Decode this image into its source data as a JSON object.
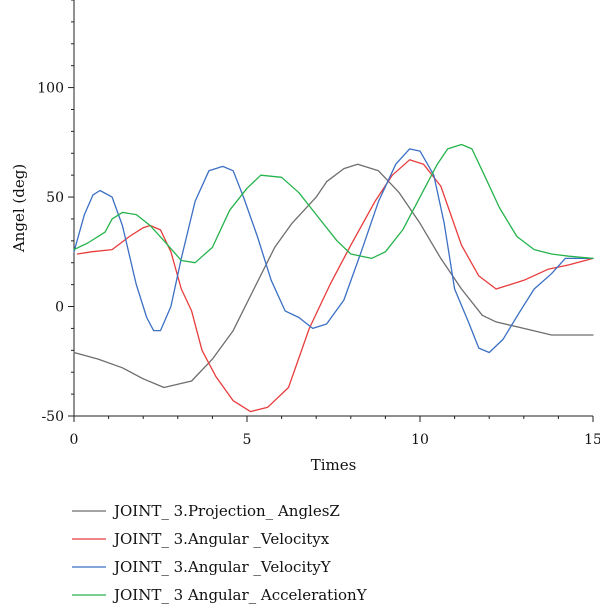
{
  "chart_data": {
    "type": "line",
    "xlabel": "Times",
    "ylabel": "Angel (deg)",
    "xlim": [
      0,
      15
    ],
    "ylim": [
      -50,
      140
    ],
    "xticks": [
      0,
      5,
      10,
      15
    ],
    "yticks": [
      -50,
      0,
      50,
      100
    ],
    "grid": false,
    "legend_position": "bottom",
    "series": [
      {
        "name": "JOINT_ 3.Projection_ AnglesZ",
        "color": "#6e6e6e",
        "x": [
          0,
          0.7,
          1.4,
          2.0,
          2.6,
          3.4,
          4.0,
          4.6,
          5.2,
          5.8,
          6.3,
          7.0,
          7.3,
          7.8,
          8.2,
          8.8,
          9.4,
          10.0,
          10.6,
          11.2,
          11.8,
          12.2,
          13.0,
          13.8,
          14.5,
          15.0
        ],
        "y": [
          -21,
          -24,
          -28,
          -33,
          -37,
          -34,
          -24,
          -11,
          8,
          27,
          38,
          50,
          57,
          63,
          65,
          62,
          52,
          38,
          22,
          8,
          -4,
          -7,
          -10,
          -13,
          -13,
          -13
        ]
      },
      {
        "name": "JOINT_ 3.Angular _Velocityx",
        "color": "#e83c3c",
        "x": [
          0.1,
          0.5,
          1.1,
          1.6,
          2.0,
          2.2,
          2.5,
          2.8,
          3.1,
          3.4,
          3.7,
          4.1,
          4.6,
          5.1,
          5.6,
          6.2,
          6.8,
          7.4,
          8.0,
          8.7,
          9.2,
          9.7,
          10.1,
          10.6,
          11.2,
          11.7,
          12.2,
          13.0,
          13.7,
          14.3,
          15.0
        ],
        "y": [
          24,
          25,
          26,
          32,
          36,
          37,
          35,
          25,
          8,
          -2,
          -20,
          -32,
          -43,
          -48,
          -46,
          -37,
          -10,
          10,
          28,
          48,
          60,
          67,
          65,
          55,
          28,
          14,
          8,
          12,
          17,
          19,
          22
        ]
      },
      {
        "name": "JOINT_ 3.Angular _VelocityY",
        "color": "#3b6fc4",
        "x": [
          0,
          0.3,
          0.55,
          0.75,
          1.1,
          1.4,
          1.8,
          2.1,
          2.3,
          2.5,
          2.8,
          3.1,
          3.5,
          3.9,
          4.3,
          4.6,
          4.9,
          5.3,
          5.7,
          6.1,
          6.5,
          6.9,
          7.3,
          7.8,
          8.3,
          8.8,
          9.3,
          9.7,
          10.0,
          10.4,
          10.7,
          11.0,
          11.4,
          11.7,
          12.0,
          12.4,
          12.9,
          13.3,
          13.8,
          14.2,
          15.0
        ],
        "y": [
          25,
          42,
          51,
          53,
          50,
          37,
          10,
          -5,
          -11,
          -11,
          0,
          22,
          48,
          62,
          64,
          62,
          50,
          32,
          12,
          -2,
          -5,
          -10,
          -8,
          3,
          25,
          48,
          65,
          72,
          71,
          60,
          38,
          8,
          -7,
          -19,
          -21,
          -15,
          -2,
          8,
          15,
          22,
          22
        ]
      },
      {
        "name": "JOINT_ 3 Angular_ AccelerationY",
        "color": "#25b34c",
        "x": [
          0,
          0.4,
          0.9,
          1.1,
          1.4,
          1.8,
          2.2,
          2.6,
          3.1,
          3.5,
          4.0,
          4.5,
          5.0,
          5.4,
          6.0,
          6.5,
          7.0,
          7.6,
          8.0,
          8.6,
          9.0,
          9.5,
          10.0,
          10.5,
          10.8,
          11.2,
          11.5,
          11.8,
          12.3,
          12.8,
          13.3,
          13.8,
          14.3,
          15.0
        ],
        "y": [
          26,
          29,
          34,
          40,
          43,
          42,
          37,
          30,
          21,
          20,
          27,
          44,
          54,
          60,
          59,
          52,
          42,
          30,
          24,
          22,
          25,
          35,
          50,
          65,
          72,
          74,
          72,
          62,
          45,
          32,
          26,
          24,
          23,
          22
        ]
      }
    ]
  }
}
